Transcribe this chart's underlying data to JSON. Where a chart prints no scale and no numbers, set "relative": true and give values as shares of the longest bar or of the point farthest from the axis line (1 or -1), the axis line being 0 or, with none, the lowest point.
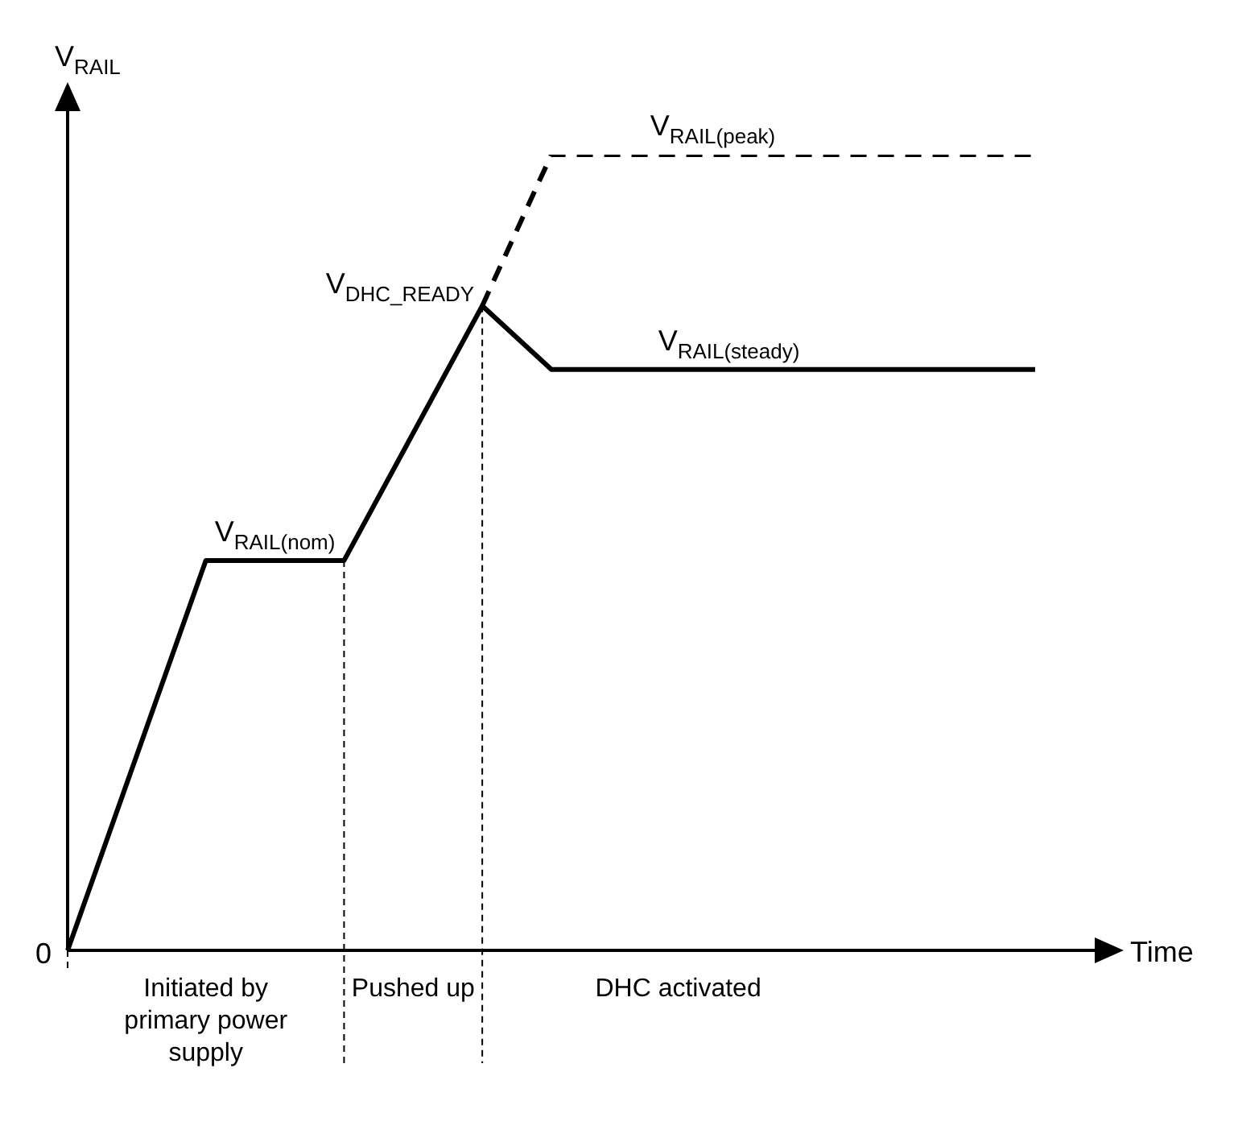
{
  "chart_data": {
    "type": "line",
    "relative": true,
    "xlabel": "Time",
    "ylabel": "V$_{RAIL}$",
    "tick_labels": false,
    "legend": false,
    "marker": "none",
    "categories": [
      null,
      null,
      null,
      null,
      null,
      null,
      null,
      null,
      null,
      null,
      null,
      null,
      null,
      null,
      null
    ],
    "series": [
      {
        "color": "#000000",
        "values": [
          0,
          null,
          0.49,
          null,
          0.49,
          null,
          0.81,
          0.73,
          null,
          null,
          null,
          null,
          null,
          null,
          0.73
        ],
        "line_style": "solid"
      },
      {
        "color": "#000000",
        "values": [
          null,
          null,
          null,
          null,
          null,
          null,
          0.81,
          1,
          null,
          null,
          null,
          null,
          null,
          null,
          1
        ],
        "line_style": "dashed"
      }
    ],
    "annotations": [
      "0",
      "V$_{RAIL(nom)}$",
      "V$_{DHC_READY}$",
      "V$_{RAIL(steady)}$",
      "V$_{RAIL(peak)}$",
      "Initiated by\nprimary power\nsupply",
      "Pushed up",
      "DHC activated"
    ]
  }
}
